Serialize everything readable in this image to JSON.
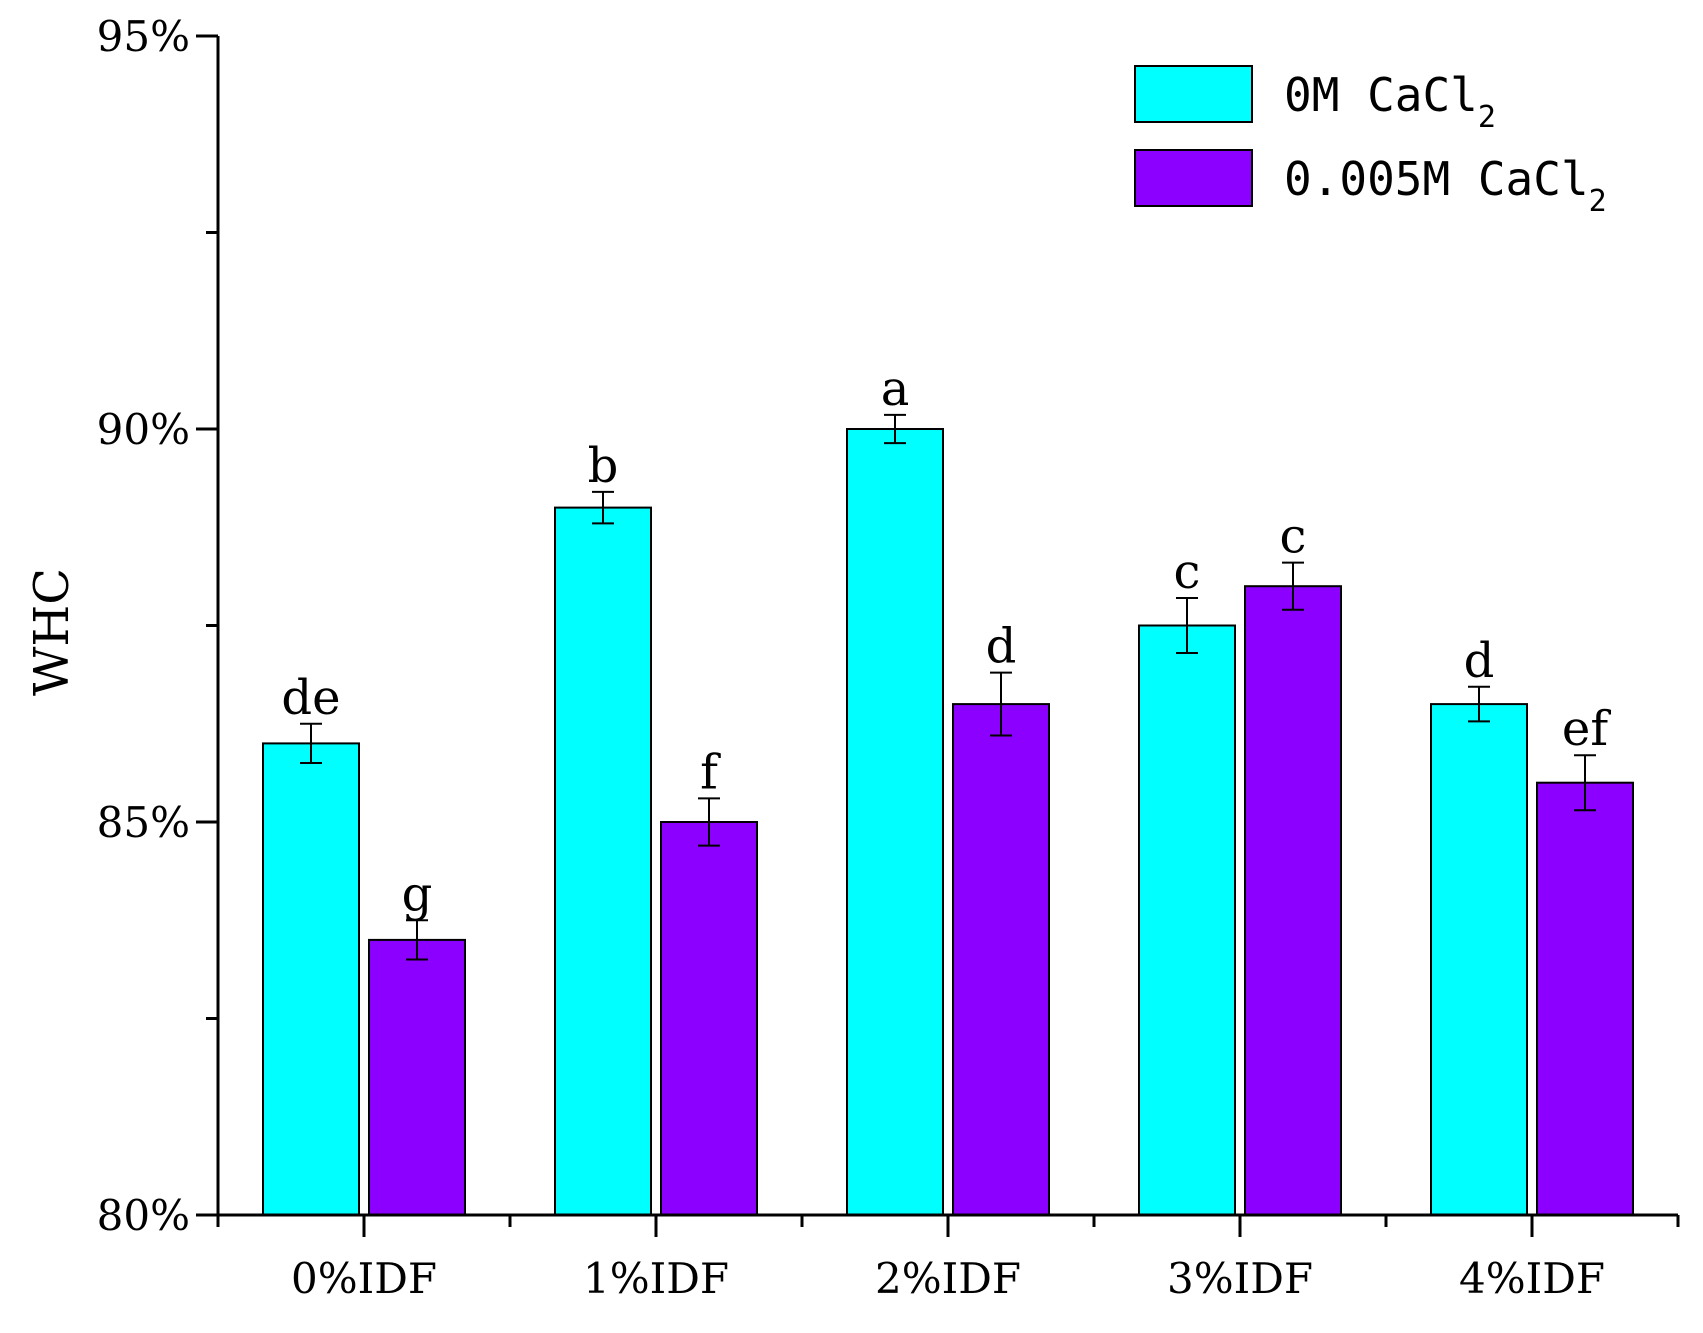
{
  "chart_data": {
    "type": "bar",
    "title": "",
    "xlabel": "",
    "ylabel": "WHC",
    "ylim": [
      80,
      95
    ],
    "ytick_values": [
      80,
      85,
      90,
      95
    ],
    "ytick_labels": [
      "80%",
      "85%",
      "90%",
      "95%"
    ],
    "categories": [
      "0%IDF",
      "1%IDF",
      "2%IDF",
      "3%IDF",
      "4%IDF"
    ],
    "grid": false,
    "legend_position": "top-right",
    "series": [
      {
        "name_main": "0M CaCl",
        "name_sub": "2",
        "color": "#00FFFF",
        "values": [
          86.0,
          89.0,
          90.0,
          87.5,
          86.5
        ],
        "errors": [
          0.25,
          0.2,
          0.18,
          0.35,
          0.22
        ],
        "sig_letters": [
          "de",
          "b",
          "a",
          "c",
          "d"
        ]
      },
      {
        "name_main": "0.005M CaCl",
        "name_sub": "2",
        "color": "#8B00FF",
        "values": [
          83.5,
          85.0,
          86.5,
          88.0,
          85.5
        ],
        "errors": [
          0.25,
          0.3,
          0.4,
          0.3,
          0.35
        ],
        "sig_letters": [
          "g",
          "f",
          "d",
          "c",
          "ef"
        ]
      }
    ]
  }
}
